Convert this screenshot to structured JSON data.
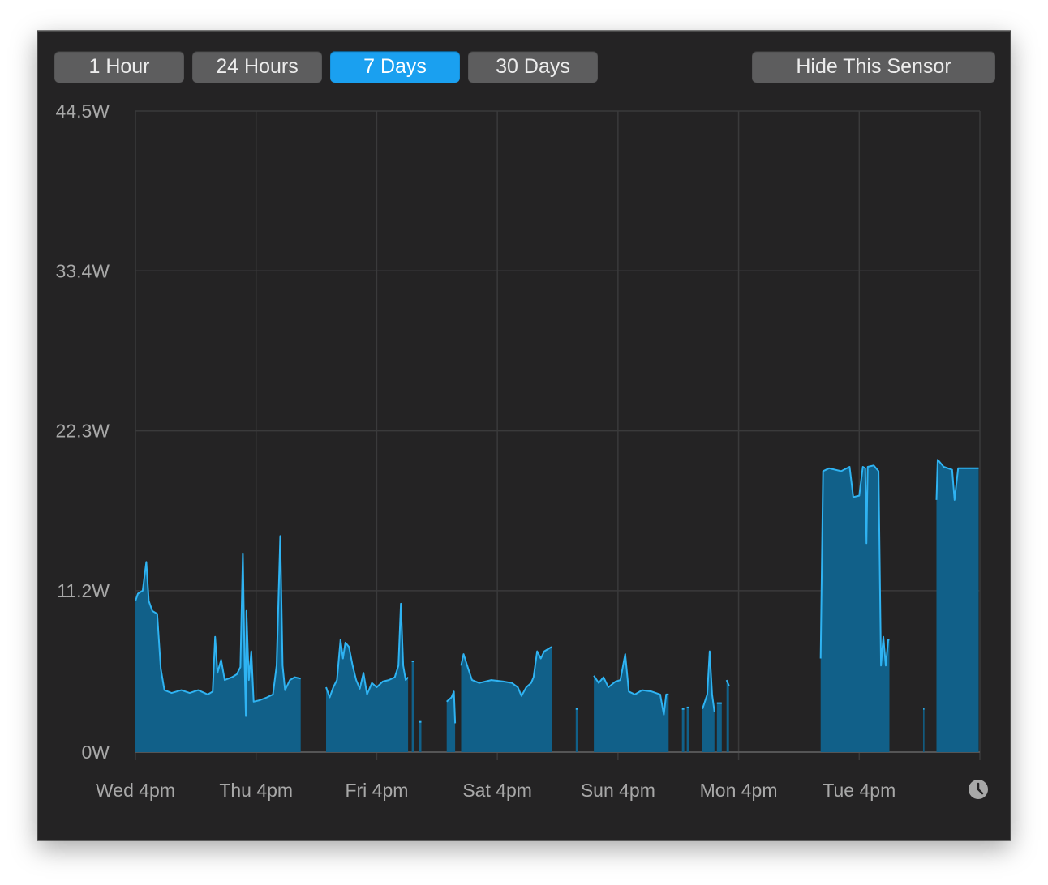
{
  "toolbar": {
    "buttons": [
      {
        "label": "1 Hour",
        "active": false
      },
      {
        "label": "24 Hours",
        "active": false
      },
      {
        "label": "7 Days",
        "active": true
      },
      {
        "label": "30 Days",
        "active": false
      }
    ],
    "hide_label": "Hide This Sensor"
  },
  "colors": {
    "background": "#242324",
    "grid": "#3a3a3b",
    "fill": "#116089",
    "line": "#2fb3f2",
    "button": "#5d5d5e",
    "button_active": "#1aa0f0"
  },
  "clock_icon": "clock-icon",
  "chart_data": {
    "type": "area",
    "title": "",
    "xlabel": "",
    "ylabel": "",
    "ylim": [
      0,
      44.5
    ],
    "yticks": [
      "0W",
      "11.2W",
      "22.3W",
      "33.4W",
      "44.5W"
    ],
    "ytick_values": [
      0,
      11.2,
      22.3,
      33.4,
      44.5
    ],
    "xticks": [
      "Wed 4pm",
      "Thu 4pm",
      "Fri 4pm",
      "Sat 4pm",
      "Sun 4pm",
      "Mon 4pm",
      "Tue 4pm"
    ],
    "xlim_days": [
      0,
      7
    ],
    "grid": true,
    "series": [
      {
        "segments": [
          [
            [
              0.0,
              10.5
            ],
            [
              0.02,
              11.0
            ],
            [
              0.06,
              11.2
            ],
            [
              0.09,
              13.2
            ],
            [
              0.11,
              10.5
            ],
            [
              0.14,
              9.8
            ],
            [
              0.18,
              9.6
            ],
            [
              0.21,
              5.8
            ],
            [
              0.24,
              4.3
            ],
            [
              0.3,
              4.1
            ],
            [
              0.38,
              4.3
            ],
            [
              0.45,
              4.1
            ],
            [
              0.52,
              4.3
            ],
            [
              0.6,
              4.0
            ],
            [
              0.64,
              4.2
            ],
            [
              0.66,
              8.0
            ],
            [
              0.68,
              5.5
            ],
            [
              0.71,
              6.4
            ],
            [
              0.74,
              5.0
            ],
            [
              0.8,
              5.2
            ],
            [
              0.84,
              5.4
            ],
            [
              0.87,
              5.9
            ],
            [
              0.89,
              13.8
            ],
            [
              0.905,
              6.0
            ],
            [
              0.915,
              2.5
            ],
            [
              0.92,
              9.8
            ],
            [
              0.94,
              5.0
            ],
            [
              0.96,
              7.0
            ],
            [
              0.98,
              3.5
            ],
            [
              1.03,
              3.6
            ],
            [
              1.09,
              3.8
            ],
            [
              1.14,
              4.0
            ],
            [
              1.17,
              6.0
            ],
            [
              1.2,
              15.0
            ],
            [
              1.22,
              6.0
            ],
            [
              1.24,
              4.3
            ],
            [
              1.28,
              5.0
            ],
            [
              1.32,
              5.2
            ],
            [
              1.37,
              5.1
            ]
          ],
          [
            [
              1.58,
              4.5
            ],
            [
              1.61,
              3.8
            ],
            [
              1.64,
              4.5
            ],
            [
              1.67,
              5.0
            ],
            [
              1.7,
              7.8
            ],
            [
              1.72,
              6.5
            ],
            [
              1.74,
              7.6
            ],
            [
              1.77,
              7.3
            ],
            [
              1.8,
              6.0
            ],
            [
              1.83,
              5.0
            ],
            [
              1.86,
              4.4
            ],
            [
              1.89,
              5.5
            ],
            [
              1.92,
              4.0
            ],
            [
              1.96,
              4.8
            ],
            [
              2.0,
              4.5
            ],
            [
              2.05,
              4.9
            ],
            [
              2.1,
              5.0
            ],
            [
              2.15,
              5.2
            ],
            [
              2.18,
              6.0
            ],
            [
              2.2,
              10.3
            ],
            [
              2.22,
              6.0
            ],
            [
              2.24,
              5.0
            ],
            [
              2.26,
              5.2
            ]
          ],
          [
            [
              2.29,
              6.3
            ],
            [
              2.31,
              6.3
            ]
          ],
          [
            [
              2.35,
              2.1
            ],
            [
              2.37,
              2.1
            ]
          ],
          [
            [
              2.58,
              3.5
            ],
            [
              2.62,
              3.8
            ],
            [
              2.64,
              4.2
            ],
            [
              2.65,
              2.0
            ]
          ],
          [
            [
              2.7,
              6.0
            ],
            [
              2.72,
              6.8
            ],
            [
              2.75,
              6.0
            ],
            [
              2.79,
              5.0
            ],
            [
              2.85,
              4.8
            ],
            [
              2.95,
              5.0
            ],
            [
              3.05,
              4.9
            ],
            [
              3.12,
              4.8
            ],
            [
              3.17,
              4.5
            ],
            [
              3.2,
              3.9
            ],
            [
              3.24,
              4.5
            ],
            [
              3.28,
              4.8
            ],
            [
              3.3,
              5.2
            ],
            [
              3.33,
              7.0
            ],
            [
              3.36,
              6.5
            ],
            [
              3.39,
              7.0
            ],
            [
              3.43,
              7.2
            ],
            [
              3.45,
              7.3
            ]
          ],
          [
            [
              3.65,
              3.0
            ],
            [
              3.67,
              3.0
            ]
          ],
          [
            [
              3.8,
              5.3
            ],
            [
              3.84,
              4.8
            ],
            [
              3.88,
              5.2
            ],
            [
              3.92,
              4.5
            ],
            [
              3.98,
              4.9
            ],
            [
              4.02,
              5.0
            ],
            [
              4.06,
              6.8
            ],
            [
              4.09,
              4.2
            ],
            [
              4.14,
              4.0
            ],
            [
              4.2,
              4.3
            ],
            [
              4.28,
              4.2
            ],
            [
              4.35,
              4.0
            ],
            [
              4.38,
              2.6
            ],
            [
              4.4,
              4.0
            ],
            [
              4.42,
              4.0
            ]
          ],
          [
            [
              4.53,
              3.0
            ],
            [
              4.55,
              3.0
            ]
          ],
          [
            [
              4.57,
              3.1
            ],
            [
              4.59,
              3.1
            ]
          ],
          [
            [
              4.7,
              3.0
            ],
            [
              4.74,
              4.0
            ],
            [
              4.76,
              7.0
            ],
            [
              4.78,
              4.0
            ],
            [
              4.8,
              2.8
            ]
          ],
          [
            [
              4.82,
              3.4
            ],
            [
              4.86,
              3.4
            ]
          ],
          [
            [
              4.9,
              5.0
            ],
            [
              4.92,
              4.6
            ]
          ],
          [
            [
              5.68,
              6.5
            ],
            [
              5.7,
              19.5
            ],
            [
              5.75,
              19.7
            ],
            [
              5.85,
              19.5
            ],
            [
              5.92,
              19.8
            ],
            [
              5.95,
              17.7
            ],
            [
              6.0,
              17.8
            ],
            [
              6.03,
              19.8
            ],
            [
              6.05,
              19.7
            ],
            [
              6.06,
              14.5
            ],
            [
              6.07,
              19.8
            ],
            [
              6.12,
              19.9
            ],
            [
              6.16,
              19.5
            ],
            [
              6.18,
              6.0
            ],
            [
              6.2,
              8.0
            ],
            [
              6.22,
              6.0
            ],
            [
              6.24,
              7.8
            ],
            [
              6.25,
              7.8
            ]
          ],
          [
            [
              6.53,
              3.0
            ],
            [
              6.54,
              3.0
            ]
          ],
          [
            [
              6.64,
              17.5
            ],
            [
              6.65,
              20.3
            ],
            [
              6.7,
              19.8
            ],
            [
              6.77,
              19.6
            ],
            [
              6.79,
              17.5
            ],
            [
              6.82,
              19.7
            ],
            [
              6.9,
              19.7
            ],
            [
              6.98,
              19.7
            ],
            [
              6.99,
              19.7
            ]
          ]
        ]
      }
    ]
  }
}
